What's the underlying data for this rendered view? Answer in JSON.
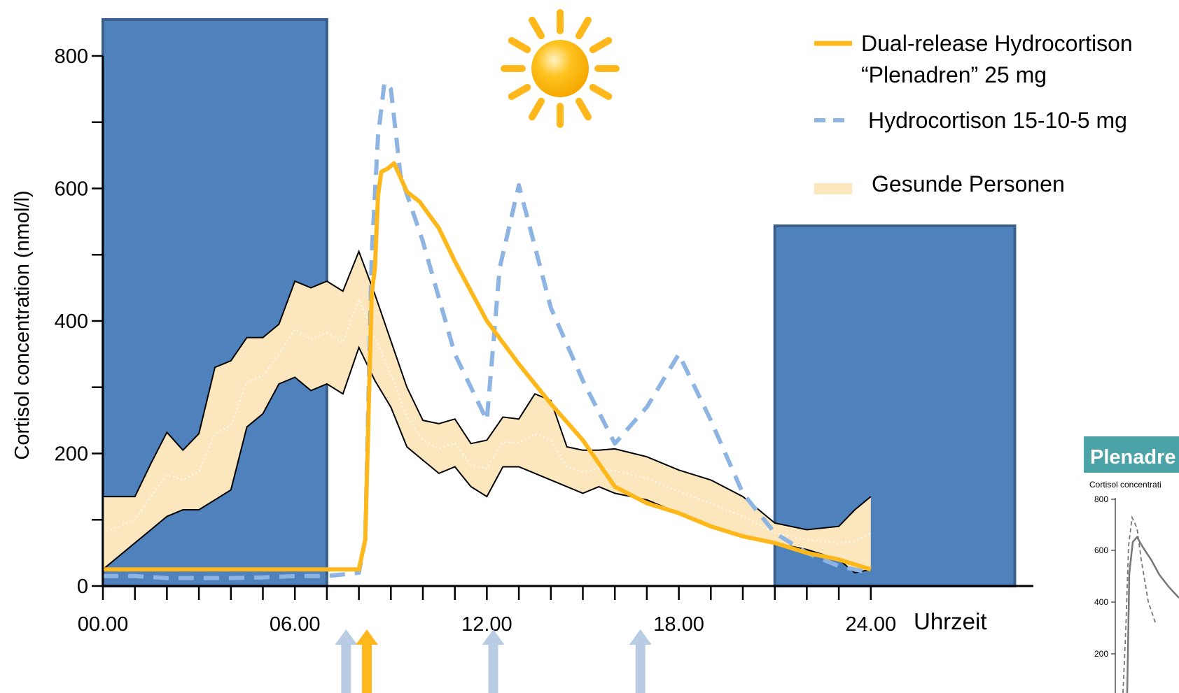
{
  "chart_data": {
    "type": "line",
    "title": "",
    "xlabel": "Uhrzeit",
    "ylabel": "Cortisol concentration (nmol/l)",
    "xlim": [
      0,
      24
    ],
    "ylim": [
      0,
      800
    ],
    "x_ticks": [
      0,
      6,
      12,
      18,
      24
    ],
    "x_tick_labels": [
      "00.00",
      "06.00",
      "12.00",
      "18.00",
      "24.00"
    ],
    "y_ticks": [
      0,
      200,
      400,
      600,
      800
    ],
    "y_tick_labels": [
      "0",
      "200",
      "400",
      "600",
      "800"
    ],
    "night_periods": [
      [
        0,
        7
      ],
      [
        21,
        28.5
      ]
    ],
    "series": [
      {
        "name": "Dual-release Hydrocortison “Plenadren” 25 mg",
        "style": "solid",
        "color": "#FFB81C",
        "x": [
          0,
          8,
          8.2,
          8.4,
          8.5,
          8.6,
          8.7,
          8.9,
          9.1,
          9.5,
          9.9,
          10.5,
          11.0,
          12.0,
          13.0,
          14.0,
          15.0,
          16.0,
          17.0,
          18.0,
          19.0,
          20.0,
          21.0,
          22.0,
          23.0,
          24.0
        ],
        "y": [
          25,
          25,
          70,
          440,
          480,
          590,
          625,
          630,
          638,
          595,
          580,
          540,
          490,
          400,
          335,
          275,
          220,
          150,
          125,
          110,
          90,
          75,
          65,
          50,
          40,
          25
        ]
      },
      {
        "name": "Hydrocortison  15-10-5 mg",
        "style": "dashed",
        "color": "#8DB4E2",
        "x": [
          0,
          1,
          2,
          3,
          4,
          5,
          6,
          7,
          8,
          8.2,
          8.4,
          8.6,
          8.8,
          9.0,
          9.3,
          10.0,
          11.0,
          12.0,
          12.4,
          13.0,
          14.0,
          15.0,
          16.0,
          17.0,
          18.0,
          19.0,
          20.0,
          21.0,
          22.0,
          23.0,
          24.0
        ],
        "y": [
          15,
          15,
          12,
          12,
          12,
          13,
          15,
          15,
          20,
          70,
          500,
          680,
          760,
          750,
          620,
          520,
          350,
          250,
          480,
          605,
          420,
          310,
          215,
          270,
          350,
          250,
          140,
          80,
          50,
          30,
          20
        ]
      },
      {
        "name": "Gesunde Personen",
        "style": "band",
        "color": "#FCE6BE",
        "x": [
          0,
          1,
          1.5,
          2,
          2.5,
          3,
          3.5,
          4,
          4.5,
          5,
          5.5,
          6,
          6.5,
          7,
          7.5,
          8,
          8.5,
          9,
          9.5,
          10,
          10.5,
          11,
          11.5,
          12,
          12.5,
          13,
          13.5,
          14,
          14.5,
          15,
          15.5,
          16,
          17,
          18,
          19,
          20,
          21,
          22,
          23,
          23.5,
          24
        ],
        "upper": [
          135,
          135,
          185,
          232,
          205,
          230,
          330,
          340,
          375,
          375,
          395,
          460,
          450,
          460,
          445,
          505,
          440,
          370,
          300,
          250,
          245,
          252,
          215,
          220,
          255,
          252,
          290,
          280,
          210,
          205,
          205,
          207,
          195,
          175,
          160,
          135,
          95,
          85,
          90,
          115,
          135
        ],
        "lower": [
          25,
          65,
          85,
          105,
          115,
          115,
          130,
          145,
          240,
          260,
          305,
          315,
          295,
          305,
          290,
          360,
          310,
          270,
          210,
          190,
          170,
          180,
          150,
          135,
          180,
          180,
          170,
          160,
          150,
          140,
          150,
          140,
          130,
          110,
          90,
          75,
          65,
          55,
          40,
          20,
          25
        ]
      }
    ],
    "dose_markers": [
      {
        "x": 7.6,
        "color": "#B8CCE4",
        "label": "Hydrocortison"
      },
      {
        "x": 8.25,
        "color": "#FFB81C",
        "label": "Plenadren"
      },
      {
        "x": 12.2,
        "color": "#B8CCE4",
        "label": "Hydrocortison"
      },
      {
        "x": 16.8,
        "color": "#B8CCE4",
        "label": "Hydrocortison"
      }
    ],
    "legend": {
      "position": "top-right",
      "entries": [
        {
          "lines": [
            "Dual-release Hydrocortison",
            "“Plenadren” 25 mg"
          ],
          "swatch": "solid",
          "color": "#FFB81C"
        },
        {
          "lines": [
            "Hydrocortison  15-10-5 mg"
          ],
          "swatch": "dashed",
          "color": "#8DB4E2"
        },
        {
          "lines": [
            "Gesunde Personen"
          ],
          "swatch": "band",
          "color": "#FCE6BE"
        }
      ]
    },
    "grid": false
  },
  "inset": {
    "title": "Plenadre",
    "subtitle": "Cortisol concentrati",
    "y_tick_labels": [
      "800",
      "600",
      "400",
      "200"
    ]
  },
  "colors": {
    "night_fill": "#4F81BD",
    "night_stroke": "#3A5F8F",
    "sun": "#FFB81C",
    "axis": "#000000",
    "inset_header": "#4BA3A8"
  },
  "icons": [
    "sun-icon",
    "moon-night-block",
    "dose-arrow-icon"
  ]
}
